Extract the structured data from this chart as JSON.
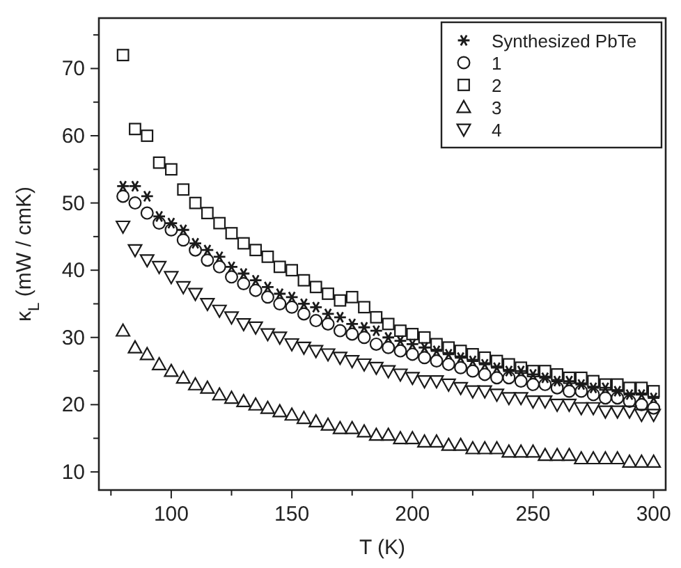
{
  "chart_data": {
    "type": "scatter",
    "xlabel": "T (K)",
    "ylabel": "κ$_{L}$ (mW / cmK)",
    "x": [
      80,
      85,
      90,
      95,
      100,
      105,
      110,
      115,
      120,
      125,
      130,
      135,
      140,
      145,
      150,
      155,
      160,
      165,
      170,
      175,
      180,
      185,
      190,
      195,
      200,
      205,
      210,
      215,
      220,
      225,
      230,
      235,
      240,
      245,
      250,
      255,
      260,
      265,
      270,
      275,
      280,
      285,
      290,
      295,
      300
    ],
    "xlim": [
      70,
      305
    ],
    "xticks": [
      {
        "value": 75,
        "label": null
      },
      100,
      {
        "value": 125,
        "label": null
      },
      150,
      {
        "value": 175,
        "label": null
      },
      200,
      {
        "value": 225,
        "label": null
      },
      250,
      {
        "value": 275,
        "label": null
      },
      300
    ],
    "ylim": [
      7.3,
      77.5
    ],
    "yticks": [
      10,
      {
        "value": 15,
        "label": null
      },
      20,
      {
        "value": 25,
        "label": null
      },
      30,
      {
        "value": 35,
        "label": null
      },
      40,
      {
        "value": 45,
        "label": null
      },
      50,
      {
        "value": 55,
        "label": null
      },
      60,
      {
        "value": 65,
        "label": null
      },
      70,
      {
        "value": 75,
        "label": null
      }
    ],
    "grid": false,
    "legend": "top right",
    "series": [
      {
        "name": "Synthesized PbTe",
        "color": "#1a1a1a",
        "marker": "cross",
        "values": [
          52.5,
          52.5,
          51,
          48,
          47,
          46,
          44,
          43,
          42,
          40.5,
          39.5,
          38.5,
          37.5,
          36.5,
          36,
          35,
          34.5,
          33.5,
          33,
          32,
          31.5,
          31,
          30,
          29.5,
          29,
          28.5,
          28,
          27.5,
          27,
          26.5,
          26,
          25.5,
          25,
          25,
          24.5,
          24,
          23.5,
          23.5,
          23,
          22.5,
          22.5,
          22,
          21.5,
          21.5,
          21
        ]
      },
      {
        "name": "1",
        "color": "#1a1a1a",
        "marker": "circle",
        "values": [
          51,
          50,
          48.5,
          47,
          46,
          44.5,
          43,
          41.5,
          40.5,
          39,
          38,
          37,
          36,
          35,
          34.5,
          33.5,
          32.5,
          32,
          31,
          30.5,
          30,
          29,
          28.5,
          28,
          27.5,
          27,
          26.5,
          26,
          25.5,
          25,
          24.5,
          24,
          24,
          23.5,
          23,
          23,
          22.5,
          22,
          22,
          21.5,
          21,
          21,
          20.5,
          20,
          19.5
        ]
      },
      {
        "name": "2",
        "color": "#1a1a1a",
        "marker": "square",
        "values": [
          72,
          61,
          60,
          56,
          55,
          52,
          50,
          48.5,
          47,
          45.5,
          44,
          43,
          42,
          40.5,
          40,
          38.5,
          37.5,
          36.5,
          35.5,
          36,
          34.5,
          33,
          32,
          31,
          30.5,
          30,
          29,
          28.5,
          28,
          27.5,
          27,
          26.5,
          26,
          25.5,
          25,
          25,
          24.5,
          24,
          24,
          23.5,
          23,
          23,
          22.5,
          22.5,
          22
        ]
      },
      {
        "name": "3",
        "color": "#1a1a1a",
        "marker": "triangle",
        "values": [
          31,
          28.5,
          27.5,
          26,
          25,
          24,
          23,
          22.5,
          21.5,
          21,
          20.5,
          20,
          19.5,
          19,
          18.5,
          18,
          17.5,
          17,
          16.5,
          16.5,
          16,
          15.5,
          15.5,
          15,
          15,
          14.5,
          14.5,
          14,
          14,
          13.5,
          13.5,
          13.5,
          13,
          13,
          13,
          12.5,
          12.5,
          12.5,
          12,
          12,
          12,
          12,
          11.5,
          11.5,
          11.5
        ]
      },
      {
        "name": "4",
        "color": "#1a1a1a",
        "marker": "triangle-down",
        "values": [
          46.5,
          43,
          41.5,
          40.5,
          39,
          37.5,
          36.5,
          35,
          34,
          33,
          32,
          31.5,
          30.5,
          30,
          29,
          28.5,
          28,
          27.5,
          27,
          26.5,
          26,
          25.5,
          25,
          24.5,
          24,
          23.5,
          23.5,
          23,
          22.5,
          22,
          22,
          21.5,
          21,
          21,
          20.5,
          20.5,
          20,
          20,
          19.5,
          19.5,
          19,
          19,
          19,
          18.5,
          18.5
        ]
      }
    ]
  }
}
